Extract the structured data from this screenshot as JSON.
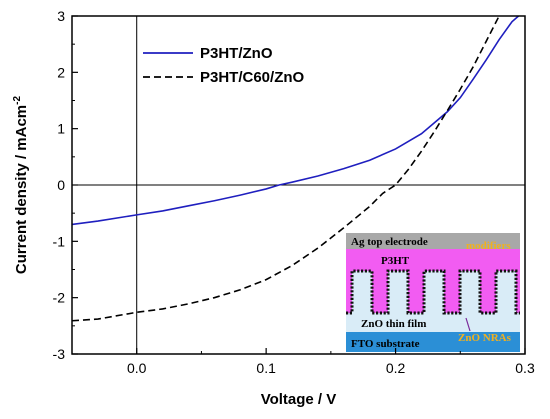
{
  "chart_data": {
    "type": "line",
    "title": "",
    "xlabel": "Voltage / V",
    "ylabel_main": "Current density / mAcm",
    "ylabel_exp": "-2",
    "xlim": [
      -0.05,
      0.3
    ],
    "ylim": [
      -3,
      3
    ],
    "xticks": [
      {
        "v": 0.0,
        "label": "0.0"
      },
      {
        "v": 0.1,
        "label": "0.1"
      },
      {
        "v": 0.2,
        "label": "0.2"
      },
      {
        "v": 0.3,
        "label": "0.3"
      }
    ],
    "yticks": [
      {
        "v": -3,
        "label": "-3"
      },
      {
        "v": -2,
        "label": "-2"
      },
      {
        "v": -1,
        "label": "-1"
      },
      {
        "v": 0,
        "label": "0"
      },
      {
        "v": 1,
        "label": "1"
      },
      {
        "v": 2,
        "label": "2"
      },
      {
        "v": 3,
        "label": "3"
      }
    ],
    "grid": false,
    "zero_lines": true,
    "legend_position": "top-left",
    "series": [
      {
        "name": "P3HT/ZnO",
        "color": "#1f1fbf",
        "dash": "solid",
        "points": [
          [
            -0.05,
            -0.7
          ],
          [
            -0.03,
            -0.64
          ],
          [
            0.0,
            -0.53
          ],
          [
            0.02,
            -0.46
          ],
          [
            0.04,
            -0.37
          ],
          [
            0.06,
            -0.28
          ],
          [
            0.08,
            -0.18
          ],
          [
            0.1,
            -0.07
          ],
          [
            0.11,
            0.0
          ],
          [
            0.12,
            0.05
          ],
          [
            0.14,
            0.16
          ],
          [
            0.16,
            0.29
          ],
          [
            0.18,
            0.44
          ],
          [
            0.2,
            0.64
          ],
          [
            0.22,
            0.91
          ],
          [
            0.24,
            1.3
          ],
          [
            0.25,
            1.55
          ],
          [
            0.26,
            1.88
          ],
          [
            0.27,
            2.22
          ],
          [
            0.28,
            2.58
          ],
          [
            0.29,
            2.9
          ],
          [
            0.295,
            3.0
          ]
        ]
      },
      {
        "name": "P3HT/C60/ZnO",
        "color": "#000000",
        "dash": "dashed",
        "points": [
          [
            -0.05,
            -2.41
          ],
          [
            -0.03,
            -2.38
          ],
          [
            0.0,
            -2.26
          ],
          [
            0.02,
            -2.2
          ],
          [
            0.04,
            -2.11
          ],
          [
            0.06,
            -2.0
          ],
          [
            0.08,
            -1.86
          ],
          [
            0.1,
            -1.68
          ],
          [
            0.12,
            -1.43
          ],
          [
            0.14,
            -1.12
          ],
          [
            0.16,
            -0.76
          ],
          [
            0.18,
            -0.38
          ],
          [
            0.19,
            -0.15
          ],
          [
            0.2,
            0.0
          ],
          [
            0.21,
            0.28
          ],
          [
            0.22,
            0.6
          ],
          [
            0.23,
            0.95
          ],
          [
            0.24,
            1.32
          ],
          [
            0.25,
            1.7
          ],
          [
            0.26,
            2.1
          ],
          [
            0.27,
            2.55
          ],
          [
            0.28,
            3.0
          ]
        ]
      }
    ],
    "inset": {
      "labels": {
        "top_electrode": "Ag top electrode",
        "modifiers": "modifiers",
        "p3ht": "P3HT",
        "zno_film": "ZnO thin film",
        "zno_nras": "ZnO NRAs",
        "fto": "FTO substrate"
      },
      "colors": {
        "ag": "#a8a8a8",
        "p3ht": "#f25cf2",
        "zno_film": "#d9ecf7",
        "fto": "#2b8fd6",
        "modifiers_text": "#f0b020",
        "nras_text": "#f0b020",
        "p3ht_text": "#000000",
        "dots": "#111111"
      }
    }
  }
}
